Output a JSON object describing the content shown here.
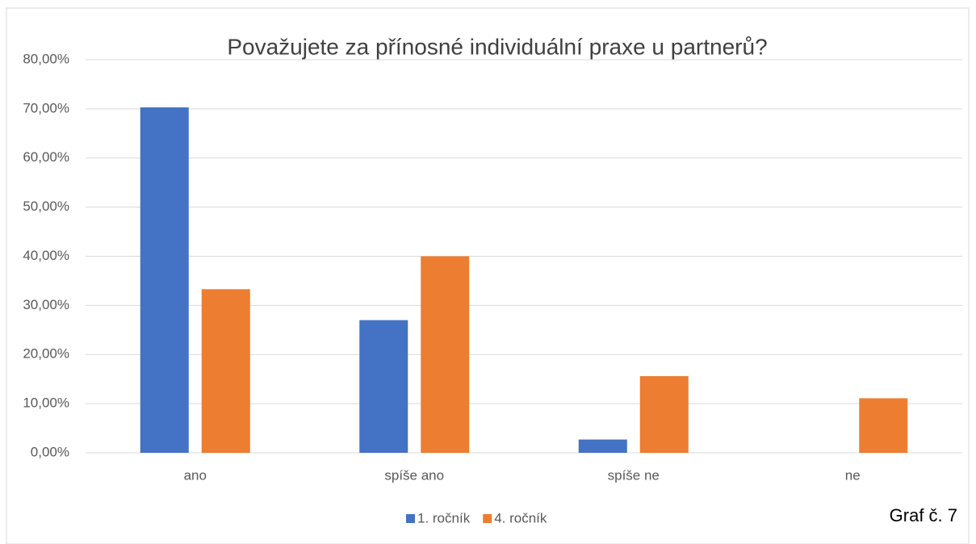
{
  "chart_data": {
    "type": "bar",
    "title": "Považujete za přínosné  individuální praxe u partnerů?",
    "annotation": "Graf č. 7",
    "categories": [
      "ano",
      "spíše ano",
      "spíše ne",
      "ne"
    ],
    "series": [
      {
        "name": "1. ročník",
        "color": "#4472c4",
        "values": [
          70.3,
          27.0,
          2.7,
          0
        ]
      },
      {
        "name": "4. ročník",
        "color": "#ed7d31",
        "values": [
          33.3,
          40.0,
          15.6,
          11.1
        ]
      }
    ],
    "ylim": [
      0,
      80
    ],
    "yticks": [
      {
        "value": 0,
        "label": "0,00%"
      },
      {
        "value": 10,
        "label": "10,00%"
      },
      {
        "value": 20,
        "label": "20,00%"
      },
      {
        "value": 30,
        "label": "30,00%"
      },
      {
        "value": 40,
        "label": "40,00%"
      },
      {
        "value": 50,
        "label": "50,00%"
      },
      {
        "value": 60,
        "label": "60,00%"
      },
      {
        "value": 70,
        "label": "70,00%"
      },
      {
        "value": 80,
        "label": "80,00%"
      }
    ],
    "grid": true,
    "legend": "bottom"
  }
}
